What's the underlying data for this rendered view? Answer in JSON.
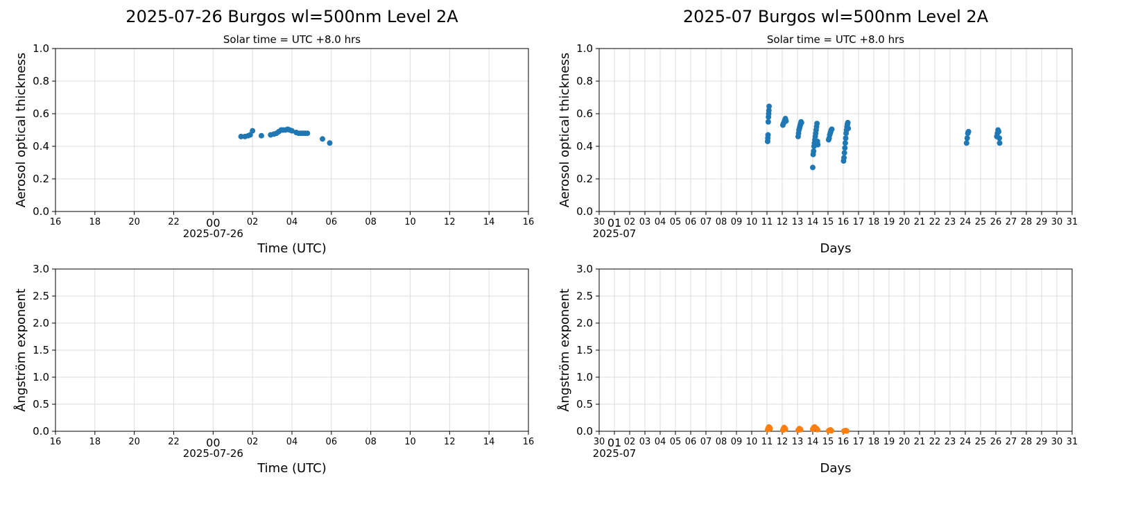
{
  "chart_data": [
    {
      "type": "scatter",
      "title": "2025-07-26  Burgos  wl=500nm  Level 2A",
      "subtitle": "Solar time = UTC +8.0 hrs",
      "xlabel": "Time (UTC)",
      "ylabel": "Aerosol optical thickness",
      "xlim": [
        "2025-07-25T16:00",
        "2025-07-26T16:00"
      ],
      "ylim": [
        0,
        1.0
      ],
      "x_ticks": [
        "16",
        "18",
        "20",
        "22",
        "00",
        "02",
        "04",
        "06",
        "08",
        "10",
        "12",
        "14",
        "16"
      ],
      "x_tick_sublabel": "2025-07-26",
      "y_ticks": [
        "0.0",
        "0.2",
        "0.4",
        "0.6",
        "0.8",
        "1.0"
      ],
      "grid": true,
      "series": [
        {
          "color": "#1f77b4",
          "x": [
            "2025-07-26T01:25",
            "2025-07-26T01:37",
            "2025-07-26T01:47",
            "2025-07-26T01:53",
            "2025-07-26T02:00",
            "2025-07-26T02:27",
            "2025-07-26T02:55",
            "2025-07-26T03:05",
            "2025-07-26T03:13",
            "2025-07-26T03:20",
            "2025-07-26T03:27",
            "2025-07-26T03:33",
            "2025-07-26T03:40",
            "2025-07-26T03:47",
            "2025-07-26T03:53",
            "2025-07-26T04:00",
            "2025-07-26T04:13",
            "2025-07-26T04:20",
            "2025-07-26T04:27",
            "2025-07-26T04:33",
            "2025-07-26T04:40",
            "2025-07-26T04:47",
            "2025-07-26T05:33",
            "2025-07-26T05:55"
          ],
          "y": [
            0.46,
            0.46,
            0.465,
            0.47,
            0.495,
            0.465,
            0.47,
            0.475,
            0.48,
            0.49,
            0.5,
            0.5,
            0.5,
            0.505,
            0.5,
            0.495,
            0.485,
            0.48,
            0.48,
            0.48,
            0.48,
            0.48,
            0.445,
            0.42
          ]
        }
      ]
    },
    {
      "type": "scatter",
      "title": "2025-07  Burgos  wl=500nm  Level 2A",
      "subtitle": "Solar time = UTC +8.0 hrs",
      "xlabel": "Days",
      "ylabel": "Aerosol optical thickness",
      "xlim": [
        "2025-06-30",
        "2025-07-31"
      ],
      "ylim": [
        0,
        1.0
      ],
      "x_ticks": [
        "30",
        "01",
        "02",
        "03",
        "04",
        "05",
        "06",
        "07",
        "08",
        "09",
        "10",
        "11",
        "12",
        "13",
        "14",
        "15",
        "16",
        "17",
        "18",
        "19",
        "20",
        "21",
        "22",
        "23",
        "24",
        "25",
        "26",
        "27",
        "28",
        "29",
        "30",
        "31"
      ],
      "x_tick_sublabel": "2025-07",
      "y_ticks": [
        "0.0",
        "0.2",
        "0.4",
        "0.6",
        "0.8",
        "1.0"
      ],
      "grid": true,
      "series": [
        {
          "color": "#1f77b4",
          "x": [
            "2025-07-11T01:00",
            "2025-07-11T01:20",
            "2025-07-11T01:40",
            "2025-07-11T02:00",
            "2025-07-11T02:20",
            "2025-07-11T02:40",
            "2025-07-11T03:00",
            "2025-07-11T03:20",
            "2025-07-12T01:00",
            "2025-07-12T02:00",
            "2025-07-12T03:00",
            "2025-07-12T04:00",
            "2025-07-12T05:00",
            "2025-07-12T06:00",
            "2025-07-13T01:00",
            "2025-07-13T01:40",
            "2025-07-13T02:20",
            "2025-07-13T03:00",
            "2025-07-13T03:40",
            "2025-07-13T04:20",
            "2025-07-13T05:00",
            "2025-07-13T05:40",
            "2025-07-13T06:20",
            "2025-07-14T00:00",
            "2025-07-14T00:40",
            "2025-07-14T01:20",
            "2025-07-14T02:00",
            "2025-07-14T02:40",
            "2025-07-14T03:20",
            "2025-07-14T04:00",
            "2025-07-14T04:40",
            "2025-07-14T05:20",
            "2025-07-14T06:00",
            "2025-07-14T06:40",
            "2025-07-14T07:20",
            "2025-07-14T08:00",
            "2025-07-15T01:00",
            "2025-07-15T01:50",
            "2025-07-15T02:40",
            "2025-07-15T03:30",
            "2025-07-15T04:20",
            "2025-07-15T05:10",
            "2025-07-15T06:00",
            "2025-07-16T00:30",
            "2025-07-16T01:10",
            "2025-07-16T01:50",
            "2025-07-16T02:30",
            "2025-07-16T03:10",
            "2025-07-16T03:50",
            "2025-07-16T04:30",
            "2025-07-16T05:10",
            "2025-07-16T05:50",
            "2025-07-16T06:30",
            "2025-07-16T07:10",
            "2025-07-16T07:50",
            "2025-07-24T02:00",
            "2025-07-24T03:00",
            "2025-07-24T04:00",
            "2025-07-24T05:00",
            "2025-07-26T01:30",
            "2025-07-26T02:30",
            "2025-07-26T03:30",
            "2025-07-26T04:30",
            "2025-07-26T05:30",
            "2025-07-26T06:00"
          ],
          "y": [
            0.43,
            0.45,
            0.47,
            0.55,
            0.58,
            0.6,
            0.62,
            0.645,
            0.53,
            0.54,
            0.55,
            0.56,
            0.57,
            0.555,
            0.46,
            0.48,
            0.5,
            0.51,
            0.52,
            0.53,
            0.54,
            0.55,
            0.545,
            0.27,
            0.35,
            0.37,
            0.4,
            0.42,
            0.44,
            0.46,
            0.48,
            0.5,
            0.52,
            0.54,
            0.43,
            0.41,
            0.44,
            0.45,
            0.47,
            0.48,
            0.49,
            0.5,
            0.505,
            0.31,
            0.33,
            0.36,
            0.39,
            0.42,
            0.45,
            0.48,
            0.5,
            0.52,
            0.535,
            0.545,
            0.51,
            0.42,
            0.45,
            0.48,
            0.49,
            0.46,
            0.48,
            0.5,
            0.49,
            0.45,
            0.42
          ]
        }
      ]
    },
    {
      "type": "scatter",
      "xlabel": "Time (UTC)",
      "ylabel": "Ångström exponent",
      "xlim": [
        "2025-07-25T16:00",
        "2025-07-26T16:00"
      ],
      "ylim": [
        0,
        3.0
      ],
      "x_ticks": [
        "16",
        "18",
        "20",
        "22",
        "00",
        "02",
        "04",
        "06",
        "08",
        "10",
        "12",
        "14",
        "16"
      ],
      "x_tick_sublabel": "2025-07-26",
      "y_ticks": [
        "0.0",
        "0.5",
        "1.0",
        "1.5",
        "2.0",
        "2.5",
        "3.0"
      ],
      "grid": true,
      "series": []
    },
    {
      "type": "scatter",
      "xlabel": "Days",
      "ylabel": "Ångström exponent",
      "xlim": [
        "2025-06-30",
        "2025-07-31"
      ],
      "ylim": [
        0,
        3.0
      ],
      "x_ticks": [
        "30",
        "01",
        "02",
        "03",
        "04",
        "05",
        "06",
        "07",
        "08",
        "09",
        "10",
        "11",
        "12",
        "13",
        "14",
        "15",
        "16",
        "17",
        "18",
        "19",
        "20",
        "21",
        "22",
        "23",
        "24",
        "25",
        "26",
        "27",
        "28",
        "29",
        "30",
        "31"
      ],
      "x_tick_sublabel": "2025-07",
      "y_ticks": [
        "0.0",
        "0.5",
        "1.0",
        "1.5",
        "2.0",
        "2.5",
        "3.0"
      ],
      "grid": true,
      "series": [
        {
          "color": "#ff7f0e",
          "x": [
            "2025-07-11T01:00",
            "2025-07-11T02:00",
            "2025-07-11T03:00",
            "2025-07-11T04:00",
            "2025-07-11T05:00",
            "2025-07-12T01:00",
            "2025-07-12T02:00",
            "2025-07-12T03:00",
            "2025-07-12T04:00",
            "2025-07-12T05:00",
            "2025-07-13T01:00",
            "2025-07-13T02:00",
            "2025-07-13T03:00",
            "2025-07-13T04:00",
            "2025-07-13T05:00",
            "2025-07-14T00:00",
            "2025-07-14T01:30",
            "2025-07-14T03:00",
            "2025-07-14T04:30",
            "2025-07-14T06:00",
            "2025-07-14T07:30",
            "2025-07-15T01:00",
            "2025-07-15T02:30",
            "2025-07-15T04:00",
            "2025-07-15T05:30",
            "2025-07-16T01:00",
            "2025-07-16T02:30",
            "2025-07-16T04:00",
            "2025-07-16T05:30"
          ],
          "y": [
            0.03,
            0.06,
            0.08,
            0.07,
            0.05,
            0.02,
            0.05,
            0.07,
            0.06,
            0.04,
            0.02,
            0.03,
            0.05,
            0.04,
            0.03,
            0.04,
            0.07,
            0.08,
            0.06,
            0.05,
            0.03,
            0.01,
            0.02,
            0.025,
            0.01,
            0.005,
            0.01,
            0.015,
            0.005
          ]
        }
      ]
    }
  ]
}
